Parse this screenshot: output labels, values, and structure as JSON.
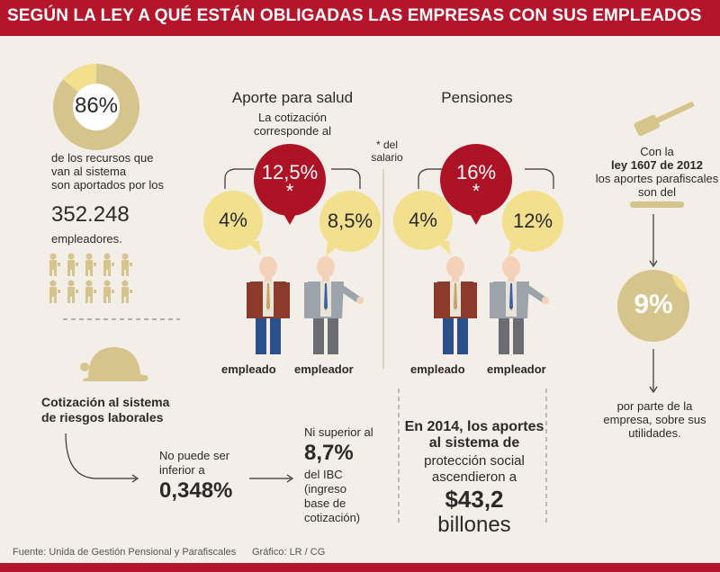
{
  "header": {
    "title": "SEGÚN LA LEY A QUÉ ESTÁN OBLIGADAS LAS EMPRESAS CON SUS EMPLEADOS"
  },
  "left": {
    "donut_value": "86%",
    "donut_fraction": 0.86,
    "desc_line1": "de los recursos que",
    "desc_line2": "van al sistema",
    "desc_line3": "son aportados por los",
    "employers_count": "352.248",
    "employers_label": "empleadores.",
    "riesgos_line1": "Cotización al sistema",
    "riesgos_line2": "de riesgos laborales"
  },
  "salud": {
    "title": "Aporte para salud",
    "sub1": "La cotización",
    "sub2": "corresponde al",
    "total": "12,5%",
    "asterisk": "*",
    "empleado_pct": "4%",
    "empleador_pct": "8,5%",
    "empleado_label": "empleado",
    "empleador_label": "empleador"
  },
  "note": {
    "line1": "* del",
    "line2": "salario"
  },
  "pensiones": {
    "title": "Pensiones",
    "total": "16%",
    "asterisk": "*",
    "empleado_pct": "4%",
    "empleador_pct": "12%",
    "empleado_label": "empleado",
    "empleador_label": "empleador"
  },
  "parafiscales": {
    "line1": "Con la",
    "line2": "ley 1607 de 2012",
    "line3": "los aportes parafiscales",
    "line4": "son del",
    "value": "9%",
    "after1": "por parte de la",
    "after2": "empresa, sobre sus",
    "after3": "utilidades."
  },
  "riesgos": {
    "min_line1": "No puede ser",
    "min_line2": "inferior a",
    "min_value": "0,348%",
    "max_line1": "Ni superior al",
    "max_value": "8,7%",
    "max_line2": "del IBC",
    "max_line3": "(ingreso",
    "max_line4": "base de",
    "max_line5": "cotización)"
  },
  "totals": {
    "line1": "En 2014, los aportes",
    "line2": "al sistema de",
    "line3": "protección social",
    "line4": "ascendieron a",
    "amount": "$43,2",
    "unit": "billones"
  },
  "footer": {
    "source": "Fuente: Unida de Gestión Pensional y Parafiscales",
    "credit": "Gráfico: LR / CG"
  },
  "colors": {
    "accent_red": "#b5152b",
    "tan": "#d6c48d",
    "pale_yellow": "#f2e08f",
    "background": "#f3eee7"
  }
}
